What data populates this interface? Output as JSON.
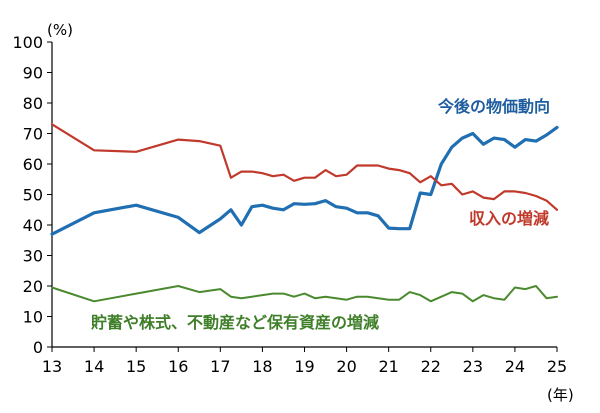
{
  "chart_data": {
    "type": "line",
    "y_unit_label": "(%)",
    "x_unit_label": "(年)",
    "xlim": [
      13,
      25
    ],
    "ylim": [
      0,
      100
    ],
    "x_ticks": [
      13,
      14,
      15,
      16,
      17,
      18,
      19,
      20,
      21,
      22,
      23,
      24,
      25
    ],
    "y_ticks": [
      0,
      10,
      20,
      30,
      40,
      50,
      60,
      70,
      80,
      90,
      100
    ],
    "grid": false,
    "series": [
      {
        "name": "今後の物価動向",
        "color": "#1f6fb2",
        "label_color": "#1f5e9e",
        "points": [
          [
            13.0,
            37
          ],
          [
            14.0,
            44
          ],
          [
            15.0,
            46.5
          ],
          [
            16.0,
            42.5
          ],
          [
            16.5,
            37.5
          ],
          [
            17.0,
            42
          ],
          [
            17.25,
            45
          ],
          [
            17.5,
            40
          ],
          [
            17.75,
            46
          ],
          [
            18.0,
            46.5
          ],
          [
            18.25,
            45.5
          ],
          [
            18.5,
            45
          ],
          [
            18.75,
            47
          ],
          [
            19.0,
            46.8
          ],
          [
            19.25,
            47
          ],
          [
            19.5,
            48
          ],
          [
            19.75,
            46
          ],
          [
            20.0,
            45.5
          ],
          [
            20.25,
            44
          ],
          [
            20.5,
            44
          ],
          [
            20.75,
            43
          ],
          [
            21.0,
            39
          ],
          [
            21.25,
            38.8
          ],
          [
            21.5,
            38.8
          ],
          [
            21.75,
            50.5
          ],
          [
            22.0,
            50
          ],
          [
            22.25,
            60
          ],
          [
            22.5,
            65.5
          ],
          [
            22.75,
            68.5
          ],
          [
            23.0,
            70
          ],
          [
            23.25,
            66.5
          ],
          [
            23.5,
            68.5
          ],
          [
            23.75,
            68
          ],
          [
            24.0,
            65.5
          ],
          [
            24.25,
            68
          ],
          [
            24.5,
            67.5
          ],
          [
            24.75,
            69.5
          ],
          [
            25.0,
            72
          ]
        ]
      },
      {
        "name": "収入の増減",
        "color": "#c0392b",
        "label_color": "#c0392b",
        "points": [
          [
            13.0,
            73
          ],
          [
            14.0,
            64.5
          ],
          [
            15.0,
            64
          ],
          [
            16.0,
            68
          ],
          [
            16.5,
            67.5
          ],
          [
            17.0,
            66
          ],
          [
            17.25,
            55.5
          ],
          [
            17.5,
            57.5
          ],
          [
            17.75,
            57.5
          ],
          [
            18.0,
            57
          ],
          [
            18.25,
            56
          ],
          [
            18.5,
            56.5
          ],
          [
            18.75,
            54.5
          ],
          [
            19.0,
            55.5
          ],
          [
            19.25,
            55.5
          ],
          [
            19.5,
            58
          ],
          [
            19.75,
            56
          ],
          [
            20.0,
            56.5
          ],
          [
            20.25,
            59.5
          ],
          [
            20.5,
            59.5
          ],
          [
            20.75,
            59.5
          ],
          [
            21.0,
            58.5
          ],
          [
            21.25,
            58
          ],
          [
            21.5,
            57
          ],
          [
            21.75,
            54
          ],
          [
            22.0,
            56
          ],
          [
            22.25,
            53
          ],
          [
            22.5,
            53.5
          ],
          [
            22.75,
            50
          ],
          [
            23.0,
            51
          ],
          [
            23.25,
            49
          ],
          [
            23.5,
            48.5
          ],
          [
            23.75,
            51
          ],
          [
            24.0,
            51
          ],
          [
            24.25,
            50.5
          ],
          [
            24.5,
            49.5
          ],
          [
            24.75,
            48
          ],
          [
            25.0,
            45
          ]
        ]
      },
      {
        "name": "貯蓄や株式、不動産など保有資産の増減",
        "color": "#4a8a2f",
        "label_color": "#3f7f2a",
        "points": [
          [
            13.0,
            19.5
          ],
          [
            14.0,
            15
          ],
          [
            15.0,
            17.5
          ],
          [
            16.0,
            20
          ],
          [
            16.5,
            18
          ],
          [
            17.0,
            19
          ],
          [
            17.25,
            16.5
          ],
          [
            17.5,
            16
          ],
          [
            17.75,
            16.5
          ],
          [
            18.0,
            17
          ],
          [
            18.25,
            17.5
          ],
          [
            18.5,
            17.5
          ],
          [
            18.75,
            16.5
          ],
          [
            19.0,
            17.5
          ],
          [
            19.25,
            16
          ],
          [
            19.5,
            16.5
          ],
          [
            19.75,
            16
          ],
          [
            20.0,
            15.5
          ],
          [
            20.25,
            16.5
          ],
          [
            20.5,
            16.5
          ],
          [
            20.75,
            16
          ],
          [
            21.0,
            15.5
          ],
          [
            21.25,
            15.5
          ],
          [
            21.5,
            18
          ],
          [
            21.75,
            17
          ],
          [
            22.0,
            15
          ],
          [
            22.25,
            16.5
          ],
          [
            22.5,
            18
          ],
          [
            22.75,
            17.5
          ],
          [
            23.0,
            15
          ],
          [
            23.25,
            17
          ],
          [
            23.5,
            16
          ],
          [
            23.75,
            15.5
          ],
          [
            24.0,
            19.5
          ],
          [
            24.25,
            19
          ],
          [
            24.5,
            20
          ],
          [
            24.75,
            16
          ],
          [
            25.0,
            16.5
          ]
        ]
      }
    ]
  }
}
